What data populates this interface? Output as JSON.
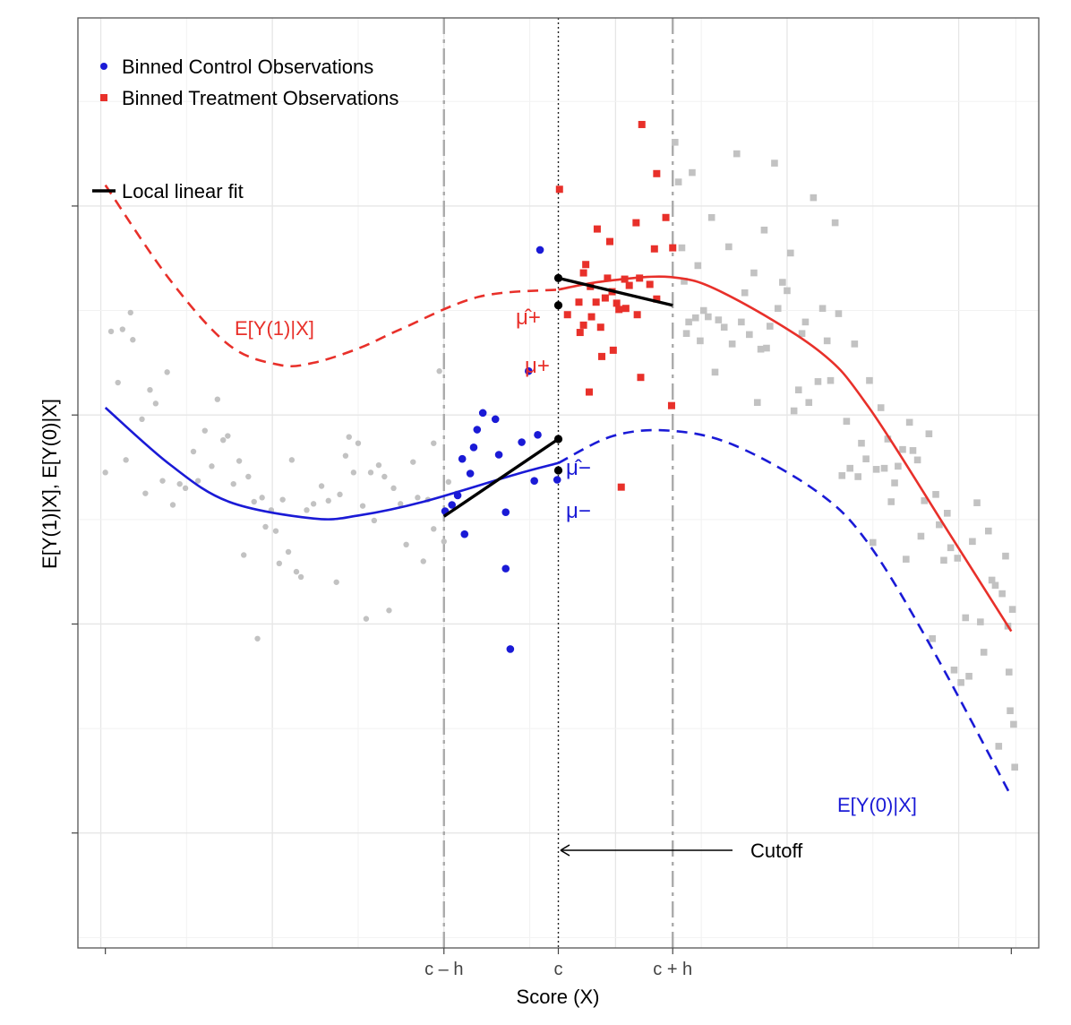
{
  "chart_data": {
    "type": "scatter",
    "title": "",
    "xlabel": "Score (X)",
    "ylabel": "E[Y(1)|X], E[Y(0)|X]",
    "xlim": [
      -4.2,
      4.2
    ],
    "ylim": [
      -4.1,
      4.8
    ],
    "grid": true,
    "legend_position": "top-left",
    "x_ticks": [
      {
        "x": -1.0,
        "label": "c – h"
      },
      {
        "x": 0.0,
        "label": "c"
      },
      {
        "x": 1.0,
        "label": "c + h"
      }
    ],
    "y_ticks": [
      -3,
      -1,
      1,
      3
    ],
    "legend": [
      {
        "name": "Binned Control Observations",
        "marker": "circle",
        "color": "#1a1ad6"
      },
      {
        "name": "Binned Treatment Observations",
        "marker": "square",
        "color": "#e8302a"
      },
      {
        "name": "Local linear fit",
        "marker": "line",
        "color": "#000000"
      }
    ],
    "colors": {
      "control": "#1a1ad6",
      "treatment": "#e8302a",
      "gray": "#c2c2c2",
      "refline": "#aaaaaa",
      "fit": "#000000"
    },
    "curves": {
      "y1": {
        "label": "E[Y(1)|X]",
        "points": [
          [
            -3.96,
            3.2
          ],
          [
            -3.4,
            2.3
          ],
          [
            -2.88,
            1.67
          ],
          [
            -2.44,
            1.48
          ],
          [
            -2.14,
            1.5
          ],
          [
            -1.74,
            1.64
          ],
          [
            -1.38,
            1.82
          ],
          [
            -0.7,
            2.13
          ],
          [
            0.0,
            2.2
          ],
          [
            0.4,
            2.28
          ],
          [
            0.98,
            2.32
          ],
          [
            1.44,
            2.17
          ],
          [
            2.27,
            1.62
          ],
          [
            2.71,
            1.08
          ],
          [
            3.41,
            -0.12
          ],
          [
            3.96,
            -1.07
          ]
        ],
        "dashed_until_x": 0.0
      },
      "y0": {
        "label": "E[Y(0)|X]",
        "points": [
          [
            -3.96,
            1.07
          ],
          [
            -3.4,
            0.53
          ],
          [
            -2.88,
            0.17
          ],
          [
            -2.14,
            0.01
          ],
          [
            -1.74,
            0.04
          ],
          [
            -1.18,
            0.17
          ],
          [
            -0.38,
            0.43
          ],
          [
            0.0,
            0.54
          ],
          [
            0.48,
            0.8
          ],
          [
            0.98,
            0.85
          ],
          [
            1.54,
            0.71
          ],
          [
            2.27,
            0.26
          ],
          [
            2.71,
            -0.23
          ],
          [
            3.27,
            -1.24
          ],
          [
            3.96,
            -2.65
          ]
        ],
        "dashed_from_x": 0.0
      }
    },
    "cutoff_line": {
      "x": 0.0
    },
    "bandwidth_lines": {
      "left": -1.0,
      "right": 1.0
    },
    "local_linear_fits": [
      {
        "side": "control",
        "x": [
          -1.0,
          0.0
        ],
        "y": [
          0.03,
          0.77
        ]
      },
      {
        "side": "treatment",
        "x": [
          0.0,
          1.0
        ],
        "y": [
          2.31,
          2.05
        ]
      }
    ],
    "mu_points": [
      {
        "name": "mu_plus_hat",
        "x": 0.0,
        "y": 2.31
      },
      {
        "name": "mu_plus",
        "x": 0.0,
        "y": 2.05
      },
      {
        "name": "mu_minus_hat",
        "x": 0.0,
        "y": 0.77
      },
      {
        "name": "mu_minus",
        "x": 0.0,
        "y": 0.47
      }
    ],
    "control_binned": [
      [
        -0.99,
        0.08
      ],
      [
        -0.93,
        0.14
      ],
      [
        -0.88,
        0.23
      ],
      [
        -0.84,
        0.58
      ],
      [
        -0.82,
        -0.14
      ],
      [
        -0.77,
        0.44
      ],
      [
        -0.74,
        0.69
      ],
      [
        -0.71,
        0.86
      ],
      [
        -0.66,
        1.02
      ],
      [
        -0.55,
        0.96
      ],
      [
        -0.52,
        0.62
      ],
      [
        -0.46,
        0.07
      ],
      [
        -0.46,
        -0.47
      ],
      [
        -0.42,
        -1.24
      ],
      [
        -0.32,
        0.74
      ],
      [
        -0.26,
        1.42
      ],
      [
        -0.21,
        0.37
      ],
      [
        -0.18,
        0.81
      ],
      [
        -0.16,
        2.58
      ],
      [
        -0.01,
        0.38
      ]
    ],
    "treatment_binned": [
      [
        0.01,
        3.16
      ],
      [
        0.08,
        1.96
      ],
      [
        0.18,
        2.08
      ],
      [
        0.19,
        1.79
      ],
      [
        0.22,
        2.36
      ],
      [
        0.22,
        1.86
      ],
      [
        0.24,
        2.44
      ],
      [
        0.27,
        1.22
      ],
      [
        0.28,
        2.23
      ],
      [
        0.29,
        1.94
      ],
      [
        0.33,
        2.08
      ],
      [
        0.34,
        2.78
      ],
      [
        0.37,
        1.84
      ],
      [
        0.38,
        1.56
      ],
      [
        0.41,
        2.12
      ],
      [
        0.43,
        2.31
      ],
      [
        0.45,
        2.66
      ],
      [
        0.47,
        2.18
      ],
      [
        0.48,
        1.62
      ],
      [
        0.51,
        2.07
      ],
      [
        0.53,
        2.01
      ],
      [
        0.55,
        0.31
      ],
      [
        0.58,
        2.3
      ],
      [
        0.59,
        2.02
      ],
      [
        0.62,
        2.24
      ],
      [
        0.68,
        2.84
      ],
      [
        0.69,
        1.96
      ],
      [
        0.71,
        2.31
      ],
      [
        0.72,
        1.36
      ],
      [
        0.73,
        3.78
      ],
      [
        0.8,
        2.25
      ],
      [
        0.84,
        2.59
      ],
      [
        0.86,
        2.11
      ],
      [
        0.86,
        3.31
      ],
      [
        0.94,
        2.89
      ],
      [
        1.0,
        2.6
      ],
      [
        0.99,
        1.09
      ]
    ],
    "gray_control": [
      [
        -3.96,
        0.45
      ],
      [
        -3.91,
        1.8
      ],
      [
        -3.85,
        1.31
      ],
      [
        -3.81,
        1.82
      ],
      [
        -3.78,
        0.57
      ],
      [
        -3.74,
        1.98
      ],
      [
        -3.72,
        1.72
      ],
      [
        -3.64,
        0.96
      ],
      [
        -3.61,
        0.25
      ],
      [
        -3.57,
        1.24
      ],
      [
        -3.52,
        1.11
      ],
      [
        -3.46,
        0.37
      ],
      [
        -3.42,
        1.41
      ],
      [
        -3.37,
        0.14
      ],
      [
        -3.31,
        0.34
      ],
      [
        -3.26,
        0.3
      ],
      [
        -3.19,
        0.65
      ],
      [
        -3.15,
        0.37
      ],
      [
        -3.09,
        0.85
      ],
      [
        -3.03,
        0.51
      ],
      [
        -2.98,
        1.15
      ],
      [
        -2.93,
        0.76
      ],
      [
        -2.89,
        0.8
      ],
      [
        -2.84,
        0.34
      ],
      [
        -2.79,
        0.56
      ],
      [
        -2.75,
        -0.34
      ],
      [
        -2.71,
        0.41
      ],
      [
        -2.66,
        0.17
      ],
      [
        -2.63,
        -1.14
      ],
      [
        -2.59,
        0.21
      ],
      [
        -2.56,
        -0.07
      ],
      [
        -2.51,
        0.09
      ],
      [
        -2.47,
        -0.11
      ],
      [
        -2.44,
        -0.42
      ],
      [
        -2.41,
        0.19
      ],
      [
        -2.36,
        -0.31
      ],
      [
        -2.33,
        0.57
      ],
      [
        -2.29,
        -0.5
      ],
      [
        -2.25,
        -0.55
      ],
      [
        -2.2,
        0.09
      ],
      [
        -2.14,
        0.15
      ],
      [
        -2.07,
        0.32
      ],
      [
        -2.01,
        0.18
      ],
      [
        -1.94,
        -0.6
      ],
      [
        -1.91,
        0.24
      ],
      [
        -1.86,
        0.61
      ],
      [
        -1.83,
        0.79
      ],
      [
        -1.79,
        0.45
      ],
      [
        -1.75,
        0.73
      ],
      [
        -1.71,
        0.13
      ],
      [
        -1.68,
        -0.95
      ],
      [
        -1.64,
        0.45
      ],
      [
        -1.61,
        -0.01
      ],
      [
        -1.57,
        0.52
      ],
      [
        -1.52,
        0.41
      ],
      [
        -1.48,
        -0.87
      ],
      [
        -1.44,
        0.3
      ],
      [
        -1.38,
        0.15
      ],
      [
        -1.33,
        -0.24
      ],
      [
        -1.27,
        0.55
      ],
      [
        -1.23,
        0.21
      ],
      [
        -1.18,
        -0.4
      ],
      [
        -1.14,
        0.19
      ],
      [
        -1.09,
        0.73
      ],
      [
        -1.04,
        1.42
      ],
      [
        -1.0,
        -0.21
      ],
      [
        -1.09,
        -0.09
      ],
      [
        -0.96,
        0.36
      ],
      [
        -0.89,
        0.25
      ]
    ],
    "gray_treatment": [
      [
        1.02,
        3.61
      ],
      [
        1.05,
        3.23
      ],
      [
        1.08,
        2.6
      ],
      [
        1.1,
        2.28
      ],
      [
        1.12,
        1.78
      ],
      [
        1.14,
        1.89
      ],
      [
        1.17,
        3.32
      ],
      [
        1.2,
        1.93
      ],
      [
        1.22,
        2.43
      ],
      [
        1.24,
        1.71
      ],
      [
        1.27,
        2.0
      ],
      [
        1.31,
        1.94
      ],
      [
        1.34,
        2.89
      ],
      [
        1.37,
        1.41
      ],
      [
        1.4,
        1.91
      ],
      [
        1.45,
        1.84
      ],
      [
        1.49,
        2.61
      ],
      [
        1.52,
        1.68
      ],
      [
        1.56,
        3.5
      ],
      [
        1.6,
        1.89
      ],
      [
        1.63,
        2.17
      ],
      [
        1.67,
        1.77
      ],
      [
        1.71,
        2.36
      ],
      [
        1.74,
        1.12
      ],
      [
        1.77,
        1.63
      ],
      [
        1.8,
        2.77
      ],
      [
        1.82,
        1.64
      ],
      [
        1.85,
        1.85
      ],
      [
        1.89,
        3.41
      ],
      [
        1.92,
        2.02
      ],
      [
        1.96,
        2.27
      ],
      [
        2.0,
        2.19
      ],
      [
        2.03,
        2.55
      ],
      [
        2.06,
        1.04
      ],
      [
        2.1,
        1.24
      ],
      [
        2.13,
        1.78
      ],
      [
        2.16,
        1.89
      ],
      [
        2.19,
        1.12
      ],
      [
        2.23,
        3.08
      ],
      [
        2.27,
        1.32
      ],
      [
        2.31,
        2.02
      ],
      [
        2.35,
        1.71
      ],
      [
        2.38,
        1.33
      ],
      [
        2.42,
        2.84
      ],
      [
        2.45,
        1.97
      ],
      [
        2.48,
        0.42
      ],
      [
        2.52,
        0.94
      ],
      [
        2.55,
        0.49
      ],
      [
        2.59,
        1.68
      ],
      [
        2.62,
        0.41
      ],
      [
        2.65,
        0.73
      ],
      [
        2.69,
        0.58
      ],
      [
        2.72,
        1.33
      ],
      [
        2.75,
        -0.22
      ],
      [
        2.78,
        0.48
      ],
      [
        2.82,
        1.07
      ],
      [
        2.85,
        0.49
      ],
      [
        2.88,
        0.77
      ],
      [
        2.91,
        0.17
      ],
      [
        2.94,
        0.35
      ],
      [
        2.97,
        0.51
      ],
      [
        3.01,
        0.67
      ],
      [
        3.04,
        -0.38
      ],
      [
        3.07,
        0.93
      ],
      [
        3.1,
        0.66
      ],
      [
        3.14,
        0.57
      ],
      [
        3.17,
        -0.16
      ],
      [
        3.2,
        0.18
      ],
      [
        3.24,
        0.82
      ],
      [
        3.27,
        -1.14
      ],
      [
        3.3,
        0.24
      ],
      [
        3.33,
        -0.05
      ],
      [
        3.37,
        -0.39
      ],
      [
        3.4,
        0.06
      ],
      [
        3.43,
        -0.27
      ],
      [
        3.46,
        -1.44
      ],
      [
        3.49,
        -0.37
      ],
      [
        3.52,
        -1.56
      ],
      [
        3.56,
        -0.94
      ],
      [
        3.59,
        -1.5
      ],
      [
        3.62,
        -0.21
      ],
      [
        3.66,
        0.16
      ],
      [
        3.69,
        -0.98
      ],
      [
        3.72,
        -1.27
      ],
      [
        3.76,
        -0.11
      ],
      [
        3.79,
        -0.58
      ],
      [
        3.82,
        -0.63
      ],
      [
        3.85,
        -2.17
      ],
      [
        3.88,
        -0.71
      ],
      [
        3.91,
        -0.35
      ],
      [
        3.93,
        -1.02
      ],
      [
        3.94,
        -1.46
      ],
      [
        3.95,
        -1.83
      ],
      [
        3.97,
        -0.86
      ],
      [
        3.98,
        -1.96
      ],
      [
        3.99,
        -2.37
      ]
    ]
  },
  "annotations": {
    "y1_label": "E[Y(1)|X]",
    "y0_label": "E[Y(0)|X]",
    "cutoff_label": "Cutoff",
    "mu_plus_hat": "μ̂+",
    "mu_plus": "μ+",
    "mu_minus_hat": "μ̂−",
    "mu_minus": "μ−"
  }
}
